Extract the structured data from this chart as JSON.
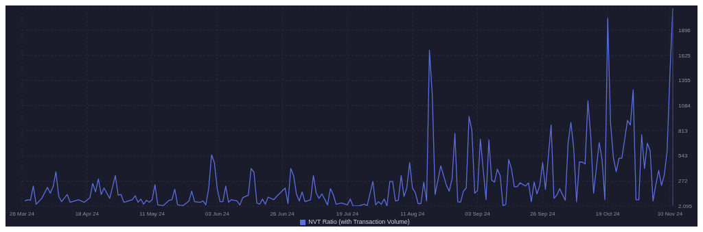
{
  "chart_data": {
    "type": "line",
    "x": [
      "2024-03-27",
      "2024-03-28",
      "2024-03-29",
      "2024-03-30",
      "2024-03-31",
      "2024-04-02",
      "2024-04-04",
      "2024-04-05",
      "2024-04-06",
      "2024-04-07",
      "2024-04-08",
      "2024-04-09",
      "2024-04-11",
      "2024-04-12",
      "2024-04-15",
      "2024-04-17",
      "2024-04-19",
      "2024-04-20",
      "2024-04-21",
      "2024-04-22",
      "2024-04-23",
      "2024-04-24",
      "2024-04-26",
      "2024-04-28",
      "2024-04-29",
      "2024-04-30",
      "2024-05-01",
      "2024-05-04",
      "2024-05-05",
      "2024-05-06",
      "2024-05-07",
      "2024-05-08",
      "2024-05-09",
      "2024-05-10",
      "2024-05-11",
      "2024-05-12",
      "2024-05-13",
      "2024-05-15",
      "2024-05-17",
      "2024-05-18",
      "2024-05-19",
      "2024-05-20",
      "2024-05-22",
      "2024-05-24",
      "2024-05-25",
      "2024-05-26",
      "2024-05-28",
      "2024-05-29",
      "2024-05-30",
      "2024-05-31",
      "2024-06-01",
      "2024-06-02",
      "2024-06-03",
      "2024-06-04",
      "2024-06-05",
      "2024-06-06",
      "2024-06-07",
      "2024-06-08",
      "2024-06-10",
      "2024-06-11",
      "2024-06-12",
      "2024-06-14",
      "2024-06-15",
      "2024-06-16",
      "2024-06-17",
      "2024-06-18",
      "2024-06-19",
      "2024-06-20",
      "2024-06-21",
      "2024-06-23",
      "2024-06-24",
      "2024-06-27",
      "2024-06-28",
      "2024-06-29",
      "2024-06-30",
      "2024-07-01",
      "2024-07-02",
      "2024-07-03",
      "2024-07-04",
      "2024-07-06",
      "2024-07-07",
      "2024-07-08",
      "2024-07-09",
      "2024-07-10",
      "2024-07-12",
      "2024-07-13",
      "2024-07-14",
      "2024-07-15",
      "2024-07-17",
      "2024-07-19",
      "2024-07-20",
      "2024-07-21",
      "2024-07-23",
      "2024-07-25",
      "2024-07-26",
      "2024-07-28",
      "2024-07-29",
      "2024-07-30",
      "2024-07-31",
      "2024-08-01",
      "2024-08-02",
      "2024-08-03",
      "2024-08-04",
      "2024-08-05",
      "2024-08-06",
      "2024-08-07",
      "2024-08-08",
      "2024-08-09",
      "2024-08-10",
      "2024-08-11",
      "2024-08-12",
      "2024-08-13",
      "2024-08-14",
      "2024-08-15",
      "2024-08-16",
      "2024-08-17",
      "2024-08-18",
      "2024-08-19",
      "2024-08-21",
      "2024-08-23",
      "2024-08-24",
      "2024-08-25",
      "2024-08-26",
      "2024-08-27",
      "2024-08-28",
      "2024-08-29",
      "2024-08-30",
      "2024-08-31",
      "2024-09-01",
      "2024-09-02",
      "2024-09-03",
      "2024-09-04",
      "2024-09-06",
      "2024-09-07",
      "2024-09-08",
      "2024-09-09",
      "2024-09-10",
      "2024-09-11",
      "2024-09-12",
      "2024-09-13",
      "2024-09-14",
      "2024-09-15",
      "2024-09-16",
      "2024-09-17",
      "2024-09-18",
      "2024-09-20",
      "2024-09-21",
      "2024-09-22",
      "2024-09-23",
      "2024-09-24",
      "2024-09-25",
      "2024-09-26",
      "2024-09-27",
      "2024-09-29",
      "2024-09-30",
      "2024-10-01",
      "2024-10-02",
      "2024-10-04",
      "2024-10-05",
      "2024-10-06",
      "2024-10-07",
      "2024-10-08",
      "2024-10-09",
      "2024-10-10",
      "2024-10-11",
      "2024-10-12",
      "2024-10-13",
      "2024-10-14",
      "2024-10-16",
      "2024-10-17",
      "2024-10-18",
      "2024-10-19",
      "2024-10-20",
      "2024-10-21",
      "2024-10-22",
      "2024-10-23",
      "2024-10-24",
      "2024-10-25",
      "2024-10-26",
      "2024-10-27",
      "2024-10-28",
      "2024-10-29",
      "2024-10-30",
      "2024-10-31",
      "2024-11-01",
      "2024-11-02",
      "2024-11-03",
      "2024-11-04",
      "2024-11-05",
      "2024-11-06",
      "2024-11-07",
      "2024-11-08",
      "2024-11-09",
      "2024-11-10",
      "2024-11-11"
    ],
    "series": [
      {
        "name": "NVT Ratio (with Transaction Volume)",
        "color": "#5b6ee1",
        "values": [
          56,
          70,
          63,
          217,
          21,
          84,
          203,
          140,
          210,
          371,
          105,
          49,
          126,
          42,
          70,
          42,
          91,
          245,
          154,
          294,
          126,
          196,
          84,
          329,
          119,
          126,
          42,
          70,
          112,
          42,
          77,
          21,
          63,
          42,
          70,
          231,
          14,
          7,
          63,
          70,
          182,
          14,
          7,
          56,
          161,
          49,
          42,
          56,
          14,
          196,
          553,
          469,
          189,
          49,
          49,
          217,
          42,
          70,
          56,
          14,
          91,
          119,
          406,
          364,
          35,
          21,
          77,
          21,
          98,
          70,
          105,
          196,
          28,
          406,
          329,
          133,
          56,
          154,
          49,
          70,
          329,
          140,
          84,
          133,
          14,
          189,
          126,
          21,
          35,
          14,
          77,
          3,
          3,
          21,
          7,
          266,
          14,
          49,
          21,
          77,
          3,
          266,
          266,
          56,
          63,
          329,
          105,
          196,
          469,
          196,
          147,
          28,
          28,
          259,
          56,
          1680,
          1204,
          126,
          434,
          224,
          161,
          294,
          784,
          49,
          42,
          161,
          196,
          966,
          819,
          140,
          168,
          721,
          70,
          714,
          280,
          259,
          399,
          329,
          3,
          21,
          504,
          399,
          210,
          210,
          252,
          217,
          252,
          49,
          259,
          133,
          224,
          469,
          182,
          875,
          84,
          119,
          189,
          63,
          679,
          903,
          616,
          49,
          476,
          476,
          455,
          1134,
          756,
          140,
          686,
          504,
          70,
          2023,
          896,
          525,
          371,
          518,
          518,
          721,
          924,
          875,
          1253,
          70,
          70,
          770,
          406,
          679,
          595,
          56,
          231,
          385,
          224,
          336,
          595,
          1435,
          2133
        ]
      }
    ],
    "xlim": [
      "2024-03-26",
      "2024-11-11"
    ],
    "xticks": [
      {
        "value": "2024-03-26",
        "label": "26 Mar 24"
      },
      {
        "value": "2024-04-18",
        "label": "18 Apr 24"
      },
      {
        "value": "2024-05-11",
        "label": "11 May 24"
      },
      {
        "value": "2024-06-03",
        "label": "03 Jun 24"
      },
      {
        "value": "2024-06-26",
        "label": "26 Jun 24"
      },
      {
        "value": "2024-07-19",
        "label": "19 Jul 24"
      },
      {
        "value": "2024-08-11",
        "label": "11 Aug 24"
      },
      {
        "value": "2024-09-03",
        "label": "03 Sep 24"
      },
      {
        "value": "2024-09-26",
        "label": "26 Sep 24"
      },
      {
        "value": "2024-10-19",
        "label": "19 Oct 24"
      },
      {
        "value": "2024-11-10",
        "label": "10 Nov 24"
      }
    ],
    "ylim": [
      2.095,
      2133
    ],
    "yticks": [
      2.095,
      272,
      543,
      813,
      1084,
      1355,
      1625,
      1896
    ],
    "grid": true,
    "legend": "bottom",
    "marker": "none"
  }
}
